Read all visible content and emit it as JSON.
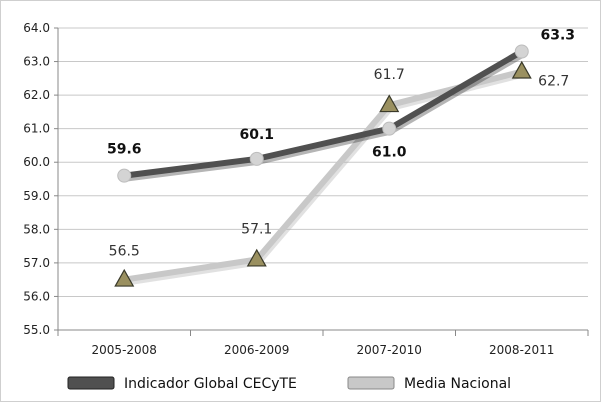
{
  "chart_data": {
    "type": "line",
    "categories": [
      "2005-2008",
      "2006-2009",
      "2007-2010",
      "2008-2011"
    ],
    "ylim": [
      55.0,
      64.0
    ],
    "ytick_step": 1.0,
    "grid": true,
    "legend_position": "bottom",
    "series": [
      {
        "name": "Indicador Global CECyTE",
        "values": [
          59.6,
          60.1,
          61.0,
          63.3
        ],
        "labels": [
          "59.6",
          "60.1",
          "61.0",
          "63.3"
        ],
        "line_color": "#505050",
        "marker_color": "#d4d4d4",
        "marker": "circle",
        "label_weight": "bold"
      },
      {
        "name": "Media Nacional",
        "values": [
          56.5,
          57.1,
          61.7,
          62.7
        ],
        "labels": [
          "56.5",
          "57.1",
          "61.7",
          "62.7"
        ],
        "line_color": "#c8c8c8",
        "marker_color": "#9a9060",
        "marker": "triangle",
        "label_weight": "normal"
      }
    ]
  }
}
